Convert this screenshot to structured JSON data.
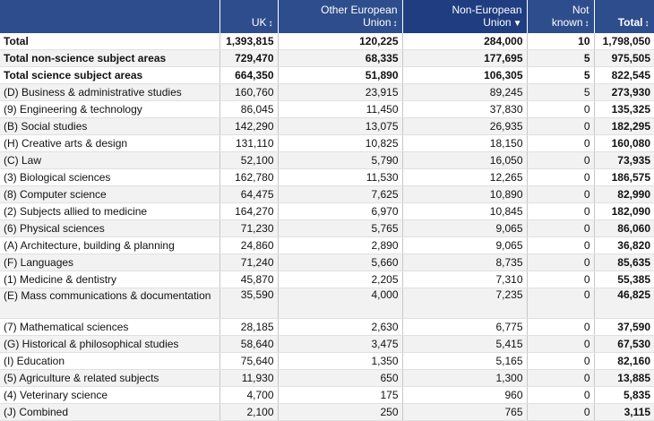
{
  "headers": {
    "label": "",
    "uk": "UK",
    "oeu_line1": "Other European",
    "oeu_line2": "Union",
    "neu_line1": "Non-European",
    "neu_line2": "Union",
    "nk_line1": "Not",
    "nk_line2": "known",
    "total": "Total",
    "sort_icon": "↕",
    "sort_active_icon": "▼"
  },
  "rows": [
    {
      "label": "Total",
      "uk": "1,393,815",
      "oeu": "120,225",
      "neu": "284,000",
      "nk": "10",
      "total": "1,798,050"
    },
    {
      "label": "Total non-science subject areas",
      "uk": "729,470",
      "oeu": "68,335",
      "neu": "177,695",
      "nk": "5",
      "total": "975,505"
    },
    {
      "label": "Total science subject areas",
      "uk": "664,350",
      "oeu": "51,890",
      "neu": "106,305",
      "nk": "5",
      "total": "822,545"
    },
    {
      "label": "(D) Business & administrative studies",
      "uk": "160,760",
      "oeu": "23,915",
      "neu": "89,245",
      "nk": "5",
      "total": "273,930"
    },
    {
      "label": "(9) Engineering & technology",
      "uk": "86,045",
      "oeu": "11,450",
      "neu": "37,830",
      "nk": "0",
      "total": "135,325"
    },
    {
      "label": "(B) Social studies",
      "uk": "142,290",
      "oeu": "13,075",
      "neu": "26,935",
      "nk": "0",
      "total": "182,295"
    },
    {
      "label": "(H) Creative arts & design",
      "uk": "131,110",
      "oeu": "10,825",
      "neu": "18,150",
      "nk": "0",
      "total": "160,080"
    },
    {
      "label": "(C) Law",
      "uk": "52,100",
      "oeu": "5,790",
      "neu": "16,050",
      "nk": "0",
      "total": "73,935"
    },
    {
      "label": "(3) Biological sciences",
      "uk": "162,780",
      "oeu": "11,530",
      "neu": "12,265",
      "nk": "0",
      "total": "186,575"
    },
    {
      "label": "(8) Computer science",
      "uk": "64,475",
      "oeu": "7,625",
      "neu": "10,890",
      "nk": "0",
      "total": "82,990"
    },
    {
      "label": "(2) Subjects allied to medicine",
      "uk": "164,270",
      "oeu": "6,970",
      "neu": "10,845",
      "nk": "0",
      "total": "182,090"
    },
    {
      "label": "(6) Physical sciences",
      "uk": "71,230",
      "oeu": "5,765",
      "neu": "9,065",
      "nk": "0",
      "total": "86,060"
    },
    {
      "label": "(A) Architecture, building & planning",
      "uk": "24,860",
      "oeu": "2,890",
      "neu": "9,065",
      "nk": "0",
      "total": "36,820"
    },
    {
      "label": "(F) Languages",
      "uk": "71,240",
      "oeu": "5,660",
      "neu": "8,735",
      "nk": "0",
      "total": "85,635"
    },
    {
      "label": "(1) Medicine & dentistry",
      "uk": "45,870",
      "oeu": "2,205",
      "neu": "7,310",
      "nk": "0",
      "total": "55,385"
    },
    {
      "label": "(E) Mass communications & documentation",
      "uk": "35,590",
      "oeu": "4,000",
      "neu": "7,235",
      "nk": "0",
      "total": "46,825"
    },
    {
      "label": "(7) Mathematical sciences",
      "uk": "28,185",
      "oeu": "2,630",
      "neu": "6,775",
      "nk": "0",
      "total": "37,590"
    },
    {
      "label": "(G) Historical & philosophical studies",
      "uk": "58,640",
      "oeu": "3,475",
      "neu": "5,415",
      "nk": "0",
      "total": "67,530"
    },
    {
      "label": "(I) Education",
      "uk": "75,640",
      "oeu": "1,350",
      "neu": "5,165",
      "nk": "0",
      "total": "82,160"
    },
    {
      "label": "(5) Agriculture & related subjects",
      "uk": "11,930",
      "oeu": "650",
      "neu": "1,300",
      "nk": "0",
      "total": "13,885"
    },
    {
      "label": "(4) Veterinary science",
      "uk": "4,700",
      "oeu": "175",
      "neu": "960",
      "nk": "0",
      "total": "5,835"
    },
    {
      "label": "(J) Combined",
      "uk": "2,100",
      "oeu": "250",
      "neu": "765",
      "nk": "0",
      "total": "3,115"
    }
  ]
}
